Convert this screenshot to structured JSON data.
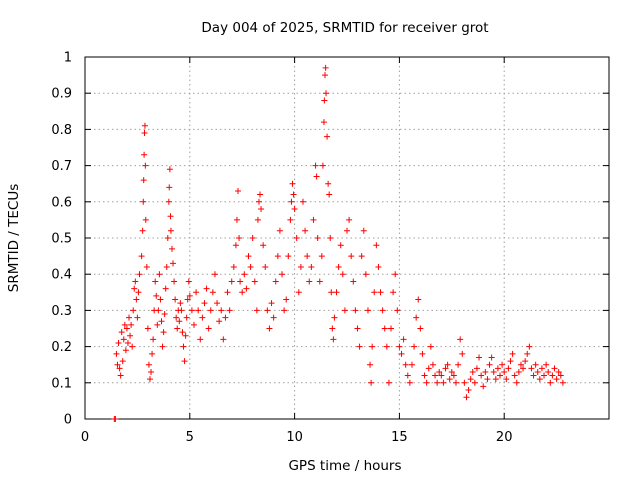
{
  "chart_data": {
    "type": "scatter",
    "title": "Day 004 of 2025, SRMTID for receiver grot",
    "xlabel": "GPS time / hours",
    "ylabel": "SRMTID / TECUs",
    "xlim": [
      0,
      25
    ],
    "ylim": [
      0,
      1
    ],
    "x_ticks": [
      0,
      5,
      10,
      15,
      20
    ],
    "y_ticks": [
      0,
      0.1,
      0.2,
      0.3,
      0.4,
      0.5,
      0.6,
      0.7,
      0.8,
      0.9,
      1
    ],
    "x_tick_labels": [
      "0",
      "5",
      "10",
      "15",
      "20"
    ],
    "y_tick_labels": [
      "0",
      "0.1",
      "0.2",
      "0.3",
      "0.4",
      "0.5",
      "0.6",
      "0.7",
      "0.8",
      "0.9",
      "1"
    ],
    "grid": true,
    "marker": "+",
    "color": "#ff0000",
    "series": [
      {
        "name": "SRMTID",
        "points": [
          [
            1.4,
            0.0
          ],
          [
            1.45,
            0.0
          ],
          [
            1.5,
            0.18
          ],
          [
            1.55,
            0.15
          ],
          [
            1.6,
            0.21
          ],
          [
            1.65,
            0.14
          ],
          [
            1.7,
            0.12
          ],
          [
            1.75,
            0.24
          ],
          [
            1.8,
            0.16
          ],
          [
            1.85,
            0.22
          ],
          [
            1.9,
            0.26
          ],
          [
            1.95,
            0.19
          ],
          [
            2.0,
            0.25
          ],
          [
            2.05,
            0.21
          ],
          [
            2.1,
            0.28
          ],
          [
            2.15,
            0.23
          ],
          [
            2.2,
            0.26
          ],
          [
            2.25,
            0.2
          ],
          [
            2.3,
            0.3
          ],
          [
            2.35,
            0.36
          ],
          [
            2.4,
            0.38
          ],
          [
            2.45,
            0.33
          ],
          [
            2.5,
            0.28
          ],
          [
            2.55,
            0.35
          ],
          [
            2.6,
            0.4
          ],
          [
            2.7,
            0.45
          ],
          [
            2.75,
            0.52
          ],
          [
            2.78,
            0.6
          ],
          [
            2.8,
            0.66
          ],
          [
            2.82,
            0.73
          ],
          [
            2.84,
            0.79
          ],
          [
            2.86,
            0.81
          ],
          [
            2.88,
            0.7
          ],
          [
            2.9,
            0.55
          ],
          [
            2.95,
            0.42
          ],
          [
            3.0,
            0.25
          ],
          [
            3.05,
            0.15
          ],
          [
            3.1,
            0.11
          ],
          [
            3.15,
            0.13
          ],
          [
            3.2,
            0.18
          ],
          [
            3.25,
            0.22
          ],
          [
            3.3,
            0.3
          ],
          [
            3.35,
            0.38
          ],
          [
            3.4,
            0.34
          ],
          [
            3.45,
            0.26
          ],
          [
            3.5,
            0.3
          ],
          [
            3.55,
            0.4
          ],
          [
            3.6,
            0.33
          ],
          [
            3.65,
            0.27
          ],
          [
            3.7,
            0.2
          ],
          [
            3.75,
            0.24
          ],
          [
            3.8,
            0.29
          ],
          [
            3.85,
            0.36
          ],
          [
            3.9,
            0.42
          ],
          [
            3.95,
            0.5
          ],
          [
            4.0,
            0.6
          ],
          [
            4.02,
            0.64
          ],
          [
            4.05,
            0.69
          ],
          [
            4.08,
            0.56
          ],
          [
            4.1,
            0.52
          ],
          [
            4.15,
            0.47
          ],
          [
            4.2,
            0.43
          ],
          [
            4.25,
            0.38
          ],
          [
            4.3,
            0.33
          ],
          [
            4.35,
            0.28
          ],
          [
            4.4,
            0.25
          ],
          [
            4.45,
            0.3
          ],
          [
            4.5,
            0.27
          ],
          [
            4.55,
            0.32
          ],
          [
            4.6,
            0.3
          ],
          [
            4.65,
            0.24
          ],
          [
            4.7,
            0.2
          ],
          [
            4.75,
            0.16
          ],
          [
            4.8,
            0.23
          ],
          [
            4.85,
            0.28
          ],
          [
            4.9,
            0.33
          ],
          [
            4.95,
            0.38
          ],
          [
            5.0,
            0.34
          ],
          [
            5.1,
            0.3
          ],
          [
            5.2,
            0.26
          ],
          [
            5.3,
            0.35
          ],
          [
            5.4,
            0.3
          ],
          [
            5.5,
            0.22
          ],
          [
            5.6,
            0.28
          ],
          [
            5.7,
            0.32
          ],
          [
            5.8,
            0.36
          ],
          [
            5.9,
            0.25
          ],
          [
            6.0,
            0.3
          ],
          [
            6.1,
            0.35
          ],
          [
            6.2,
            0.4
          ],
          [
            6.3,
            0.32
          ],
          [
            6.4,
            0.27
          ],
          [
            6.5,
            0.3
          ],
          [
            6.6,
            0.22
          ],
          [
            6.7,
            0.28
          ],
          [
            6.8,
            0.35
          ],
          [
            6.9,
            0.3
          ],
          [
            7.0,
            0.38
          ],
          [
            7.1,
            0.42
          ],
          [
            7.2,
            0.48
          ],
          [
            7.25,
            0.55
          ],
          [
            7.3,
            0.63
          ],
          [
            7.35,
            0.5
          ],
          [
            7.4,
            0.38
          ],
          [
            7.5,
            0.35
          ],
          [
            7.6,
            0.4
          ],
          [
            7.7,
            0.36
          ],
          [
            7.8,
            0.45
          ],
          [
            7.9,
            0.42
          ],
          [
            8.0,
            0.5
          ],
          [
            8.1,
            0.38
          ],
          [
            8.2,
            0.3
          ],
          [
            8.25,
            0.55
          ],
          [
            8.3,
            0.6
          ],
          [
            8.35,
            0.62
          ],
          [
            8.4,
            0.58
          ],
          [
            8.5,
            0.48
          ],
          [
            8.6,
            0.42
          ],
          [
            8.7,
            0.3
          ],
          [
            8.8,
            0.25
          ],
          [
            8.9,
            0.32
          ],
          [
            9.0,
            0.28
          ],
          [
            9.1,
            0.38
          ],
          [
            9.2,
            0.45
          ],
          [
            9.3,
            0.52
          ],
          [
            9.4,
            0.4
          ],
          [
            9.5,
            0.3
          ],
          [
            9.6,
            0.33
          ],
          [
            9.7,
            0.45
          ],
          [
            9.8,
            0.55
          ],
          [
            9.85,
            0.6
          ],
          [
            9.9,
            0.65
          ],
          [
            9.95,
            0.62
          ],
          [
            10.0,
            0.58
          ],
          [
            10.1,
            0.5
          ],
          [
            10.2,
            0.35
          ],
          [
            10.3,
            0.42
          ],
          [
            10.4,
            0.6
          ],
          [
            10.5,
            0.52
          ],
          [
            10.6,
            0.45
          ],
          [
            10.7,
            0.38
          ],
          [
            10.8,
            0.42
          ],
          [
            10.9,
            0.55
          ],
          [
            11.0,
            0.7
          ],
          [
            11.05,
            0.67
          ],
          [
            11.1,
            0.5
          ],
          [
            11.2,
            0.38
          ],
          [
            11.3,
            0.45
          ],
          [
            11.35,
            0.7
          ],
          [
            11.4,
            0.82
          ],
          [
            11.42,
            0.88
          ],
          [
            11.45,
            0.95
          ],
          [
            11.48,
            0.97
          ],
          [
            11.5,
            0.9
          ],
          [
            11.55,
            0.78
          ],
          [
            11.6,
            0.65
          ],
          [
            11.65,
            0.62
          ],
          [
            11.7,
            0.5
          ],
          [
            11.75,
            0.35
          ],
          [
            11.8,
            0.25
          ],
          [
            11.85,
            0.22
          ],
          [
            11.9,
            0.28
          ],
          [
            12.0,
            0.35
          ],
          [
            12.1,
            0.42
          ],
          [
            12.2,
            0.48
          ],
          [
            12.3,
            0.4
          ],
          [
            12.4,
            0.3
          ],
          [
            12.5,
            0.52
          ],
          [
            12.6,
            0.55
          ],
          [
            12.7,
            0.45
          ],
          [
            12.8,
            0.38
          ],
          [
            12.9,
            0.3
          ],
          [
            13.0,
            0.25
          ],
          [
            13.1,
            0.2
          ],
          [
            13.2,
            0.45
          ],
          [
            13.3,
            0.52
          ],
          [
            13.4,
            0.4
          ],
          [
            13.5,
            0.3
          ],
          [
            13.6,
            0.15
          ],
          [
            13.65,
            0.1
          ],
          [
            13.7,
            0.2
          ],
          [
            13.8,
            0.35
          ],
          [
            13.9,
            0.48
          ],
          [
            14.0,
            0.42
          ],
          [
            14.1,
            0.35
          ],
          [
            14.2,
            0.3
          ],
          [
            14.3,
            0.25
          ],
          [
            14.4,
            0.2
          ],
          [
            14.5,
            0.1
          ],
          [
            14.6,
            0.25
          ],
          [
            14.7,
            0.35
          ],
          [
            14.8,
            0.4
          ],
          [
            14.9,
            0.3
          ],
          [
            15.0,
            0.2
          ],
          [
            15.1,
            0.18
          ],
          [
            15.2,
            0.22
          ],
          [
            15.3,
            0.15
          ],
          [
            15.4,
            0.12
          ],
          [
            15.5,
            0.1
          ],
          [
            15.6,
            0.15
          ],
          [
            15.7,
            0.2
          ],
          [
            15.8,
            0.28
          ],
          [
            15.9,
            0.33
          ],
          [
            16.0,
            0.25
          ],
          [
            16.1,
            0.18
          ],
          [
            16.2,
            0.12
          ],
          [
            16.3,
            0.1
          ],
          [
            16.4,
            0.14
          ],
          [
            16.5,
            0.2
          ],
          [
            16.6,
            0.15
          ],
          [
            16.7,
            0.12
          ],
          [
            16.8,
            0.1
          ],
          [
            16.9,
            0.13
          ],
          [
            17.0,
            0.12
          ],
          [
            17.1,
            0.1
          ],
          [
            17.2,
            0.14
          ],
          [
            17.3,
            0.15
          ],
          [
            17.4,
            0.11
          ],
          [
            17.5,
            0.13
          ],
          [
            17.6,
            0.12
          ],
          [
            17.7,
            0.1
          ],
          [
            17.8,
            0.15
          ],
          [
            17.9,
            0.22
          ],
          [
            18.0,
            0.18
          ],
          [
            18.1,
            0.1
          ],
          [
            18.2,
            0.06
          ],
          [
            18.3,
            0.08
          ],
          [
            18.4,
            0.11
          ],
          [
            18.5,
            0.13
          ],
          [
            18.6,
            0.1
          ],
          [
            18.7,
            0.14
          ],
          [
            18.8,
            0.17
          ],
          [
            18.9,
            0.12
          ],
          [
            19.0,
            0.09
          ],
          [
            19.1,
            0.13
          ],
          [
            19.2,
            0.11
          ],
          [
            19.3,
            0.15
          ],
          [
            19.4,
            0.17
          ],
          [
            19.5,
            0.13
          ],
          [
            19.6,
            0.11
          ],
          [
            19.7,
            0.14
          ],
          [
            19.8,
            0.12
          ],
          [
            19.9,
            0.15
          ],
          [
            20.0,
            0.13
          ],
          [
            20.1,
            0.11
          ],
          [
            20.2,
            0.14
          ],
          [
            20.3,
            0.16
          ],
          [
            20.4,
            0.18
          ],
          [
            20.5,
            0.12
          ],
          [
            20.6,
            0.1
          ],
          [
            20.7,
            0.13
          ],
          [
            20.8,
            0.15
          ],
          [
            20.9,
            0.14
          ],
          [
            21.0,
            0.16
          ],
          [
            21.1,
            0.18
          ],
          [
            21.2,
            0.2
          ],
          [
            21.3,
            0.14
          ],
          [
            21.4,
            0.12
          ],
          [
            21.5,
            0.15
          ],
          [
            21.6,
            0.13
          ],
          [
            21.7,
            0.11
          ],
          [
            21.8,
            0.14
          ],
          [
            21.9,
            0.12
          ],
          [
            22.0,
            0.15
          ],
          [
            22.1,
            0.13
          ],
          [
            22.2,
            0.1
          ],
          [
            22.3,
            0.12
          ],
          [
            22.4,
            0.14
          ],
          [
            22.5,
            0.11
          ],
          [
            22.6,
            0.13
          ],
          [
            22.7,
            0.12
          ],
          [
            22.8,
            0.1
          ]
        ]
      }
    ]
  }
}
